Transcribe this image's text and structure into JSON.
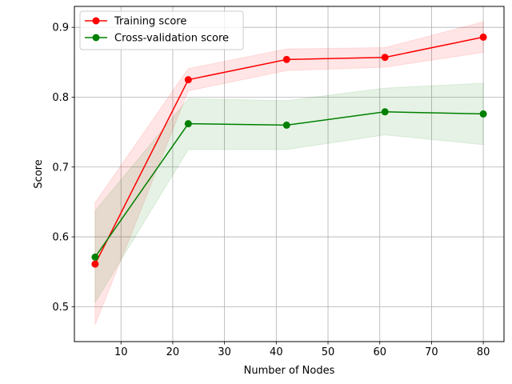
{
  "chart_data": {
    "type": "line",
    "title": "",
    "xlabel": "Number of Nodes",
    "ylabel": "Score",
    "xlim": [
      1,
      84
    ],
    "ylim": [
      0.45,
      0.93
    ],
    "x_ticks": [
      10,
      20,
      30,
      40,
      50,
      60,
      70,
      80
    ],
    "y_ticks": [
      0.5,
      0.6,
      0.7,
      0.8,
      0.9
    ],
    "grid": true,
    "legend_position": "top-left",
    "x": [
      5,
      23,
      42,
      61,
      80
    ],
    "series": [
      {
        "name": "Training score",
        "color": "#ff0000",
        "values": [
          0.561,
          0.825,
          0.854,
          0.857,
          0.886
        ],
        "band_lower": [
          0.474,
          0.809,
          0.838,
          0.843,
          0.864
        ],
        "band_upper": [
          0.649,
          0.841,
          0.869,
          0.871,
          0.908
        ]
      },
      {
        "name": "Cross-validation score",
        "color": "#008000",
        "values": [
          0.571,
          0.762,
          0.76,
          0.779,
          0.776
        ],
        "band_lower": [
          0.506,
          0.725,
          0.725,
          0.746,
          0.732
        ],
        "band_upper": [
          0.637,
          0.798,
          0.795,
          0.813,
          0.82
        ]
      }
    ]
  }
}
